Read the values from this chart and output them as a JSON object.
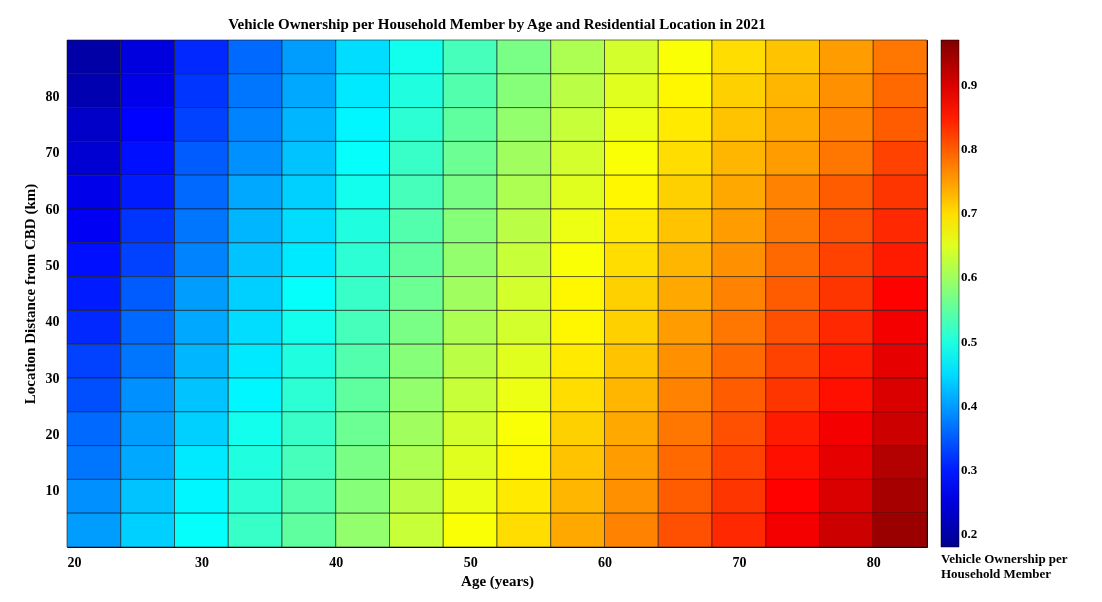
{
  "chart_data": {
    "type": "heatmap",
    "title": "Vehicle Ownership per Household Member by Age and Residential Location in 2021",
    "xlabel": "Age (years)",
    "ylabel": "Location Distance from CBD (km)",
    "clabel": "Vehicle Ownership per Household Member",
    "x": [
      22,
      26,
      30,
      34,
      38,
      42,
      46,
      50,
      54,
      58,
      62,
      66,
      70,
      74,
      78,
      82
    ],
    "y": [
      87,
      81,
      75,
      69,
      63,
      57,
      51,
      45,
      39,
      33,
      27,
      21,
      15,
      9,
      3
    ],
    "xlim": [
      20,
      84
    ],
    "ylim": [
      0,
      90
    ],
    "xticks": [
      20,
      30,
      40,
      50,
      60,
      70,
      80
    ],
    "yticks": [
      10,
      20,
      30,
      40,
      50,
      60,
      70,
      80
    ],
    "clim": [
      0.18,
      0.97
    ],
    "cticks": [
      0.2,
      0.3,
      0.4,
      0.5,
      0.6,
      0.7,
      0.8,
      0.9
    ],
    "cells": [
      [
        0.2,
        0.25,
        0.31,
        0.36,
        0.4,
        0.45,
        0.49,
        0.53,
        0.57,
        0.61,
        0.64,
        0.67,
        0.7,
        0.72,
        0.75,
        0.78
      ],
      [
        0.21,
        0.26,
        0.32,
        0.37,
        0.41,
        0.46,
        0.5,
        0.54,
        0.58,
        0.62,
        0.65,
        0.68,
        0.71,
        0.73,
        0.76,
        0.79
      ],
      [
        0.23,
        0.28,
        0.33,
        0.38,
        0.42,
        0.47,
        0.51,
        0.55,
        0.59,
        0.63,
        0.66,
        0.69,
        0.72,
        0.74,
        0.77,
        0.8
      ],
      [
        0.24,
        0.29,
        0.35,
        0.39,
        0.43,
        0.48,
        0.52,
        0.56,
        0.6,
        0.64,
        0.67,
        0.7,
        0.73,
        0.75,
        0.78,
        0.82
      ],
      [
        0.26,
        0.3,
        0.36,
        0.41,
        0.44,
        0.49,
        0.53,
        0.57,
        0.61,
        0.65,
        0.68,
        0.71,
        0.74,
        0.77,
        0.8,
        0.83
      ],
      [
        0.27,
        0.32,
        0.37,
        0.42,
        0.45,
        0.5,
        0.54,
        0.58,
        0.62,
        0.66,
        0.69,
        0.72,
        0.75,
        0.78,
        0.81,
        0.84
      ],
      [
        0.29,
        0.33,
        0.38,
        0.43,
        0.46,
        0.51,
        0.55,
        0.59,
        0.63,
        0.67,
        0.7,
        0.73,
        0.76,
        0.79,
        0.82,
        0.85
      ],
      [
        0.3,
        0.35,
        0.4,
        0.44,
        0.48,
        0.52,
        0.56,
        0.6,
        0.64,
        0.68,
        0.71,
        0.74,
        0.77,
        0.8,
        0.83,
        0.87
      ],
      [
        0.31,
        0.36,
        0.41,
        0.45,
        0.49,
        0.53,
        0.57,
        0.61,
        0.64,
        0.68,
        0.71,
        0.75,
        0.78,
        0.81,
        0.84,
        0.88
      ],
      [
        0.33,
        0.37,
        0.42,
        0.46,
        0.5,
        0.54,
        0.58,
        0.62,
        0.65,
        0.69,
        0.72,
        0.76,
        0.79,
        0.82,
        0.85,
        0.89
      ],
      [
        0.34,
        0.39,
        0.43,
        0.47,
        0.51,
        0.55,
        0.59,
        0.63,
        0.66,
        0.7,
        0.73,
        0.77,
        0.8,
        0.83,
        0.86,
        0.9
      ],
      [
        0.36,
        0.4,
        0.44,
        0.49,
        0.52,
        0.56,
        0.6,
        0.64,
        0.67,
        0.71,
        0.74,
        0.78,
        0.81,
        0.85,
        0.88,
        0.91
      ],
      [
        0.37,
        0.41,
        0.46,
        0.5,
        0.53,
        0.57,
        0.61,
        0.65,
        0.68,
        0.72,
        0.75,
        0.79,
        0.82,
        0.86,
        0.89,
        0.93
      ],
      [
        0.39,
        0.43,
        0.47,
        0.51,
        0.54,
        0.58,
        0.62,
        0.66,
        0.69,
        0.73,
        0.76,
        0.8,
        0.83,
        0.87,
        0.9,
        0.94
      ],
      [
        0.4,
        0.44,
        0.48,
        0.52,
        0.55,
        0.59,
        0.63,
        0.67,
        0.7,
        0.74,
        0.77,
        0.81,
        0.84,
        0.88,
        0.91,
        0.95
      ]
    ]
  }
}
